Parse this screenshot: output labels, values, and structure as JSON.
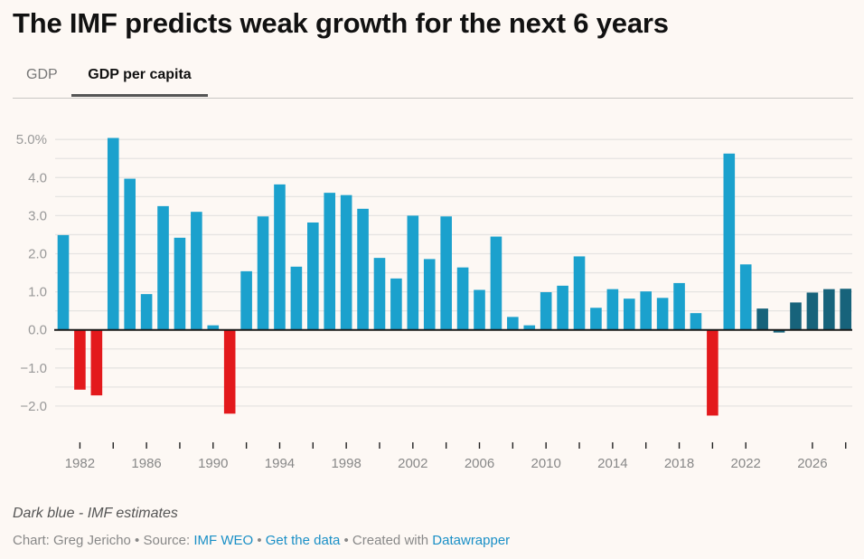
{
  "title": "The IMF predicts weak growth for the next 6 years",
  "tabs": [
    {
      "label": "GDP",
      "active": false
    },
    {
      "label": "GDP per capita",
      "active": true
    }
  ],
  "colors": {
    "historical": "#1ba1cd",
    "negative": "#e3191c",
    "estimate": "#17637b",
    "grid": "#e6e4e2",
    "baseline": "#1a1a1a",
    "background": "#fdf8f4"
  },
  "chart_data": {
    "type": "bar",
    "title": "The IMF predicts weak growth for the next 6 years",
    "subtitle_tab": "GDP per capita",
    "xlabel": "",
    "ylabel": "",
    "ylim": [
      -2.5,
      5.0
    ],
    "yticks": [
      5.0,
      4.0,
      3.0,
      2.0,
      1.0,
      0.0,
      -1.0,
      -2.0
    ],
    "ytick_labels": [
      "5.0%",
      "4.0",
      "3.0",
      "2.0",
      "1.0",
      "0.0",
      "−1.0",
      "−2.0"
    ],
    "grid_step": 0.5,
    "grid": true,
    "xtick_labels": [
      "1982",
      "1986",
      "1990",
      "1994",
      "1998",
      "2002",
      "2006",
      "2010",
      "2014",
      "2018",
      "2022",
      "2026"
    ],
    "xtick_marks": [
      1982,
      1984,
      1986,
      1988,
      1990,
      1992,
      1994,
      1996,
      1998,
      2000,
      2002,
      2004,
      2006,
      2008,
      2010,
      2012,
      2014,
      2016,
      2018,
      2020,
      2022,
      2026,
      2028
    ],
    "categories": [
      1981,
      1982,
      1983,
      1984,
      1985,
      1986,
      1987,
      1988,
      1989,
      1990,
      1991,
      1992,
      1993,
      1994,
      1995,
      1996,
      1997,
      1998,
      1999,
      2000,
      2001,
      2002,
      2003,
      2004,
      2005,
      2006,
      2007,
      2008,
      2009,
      2010,
      2011,
      2012,
      2013,
      2014,
      2015,
      2016,
      2017,
      2018,
      2019,
      2020,
      2021,
      2022,
      2023,
      2024,
      2025,
      2026,
      2027,
      2028
    ],
    "values": [
      2.49,
      -1.57,
      -1.72,
      5.04,
      3.97,
      0.94,
      3.25,
      2.42,
      3.1,
      0.12,
      -2.2,
      1.54,
      2.98,
      3.82,
      1.66,
      2.82,
      3.6,
      3.54,
      3.18,
      1.89,
      1.35,
      3.0,
      1.86,
      2.98,
      1.64,
      1.05,
      2.45,
      0.34,
      0.12,
      0.99,
      1.16,
      1.93,
      0.58,
      1.07,
      0.82,
      1.01,
      0.84,
      1.23,
      0.44,
      -2.25,
      4.63,
      1.72,
      0.56,
      -0.07,
      0.72,
      0.98,
      1.07,
      1.08
    ],
    "estimate_from": 2023,
    "legend": "none"
  },
  "footer": {
    "note": "Dark blue - IMF estimates",
    "chart_by": "Chart: Greg Jericho",
    "sep1": " • Source: ",
    "source_link": "IMF WEO",
    "sep2": "  • ",
    "get_data_link": "Get the data",
    "sep3": " • Created with ",
    "datawrapper_link": "Datawrapper"
  }
}
